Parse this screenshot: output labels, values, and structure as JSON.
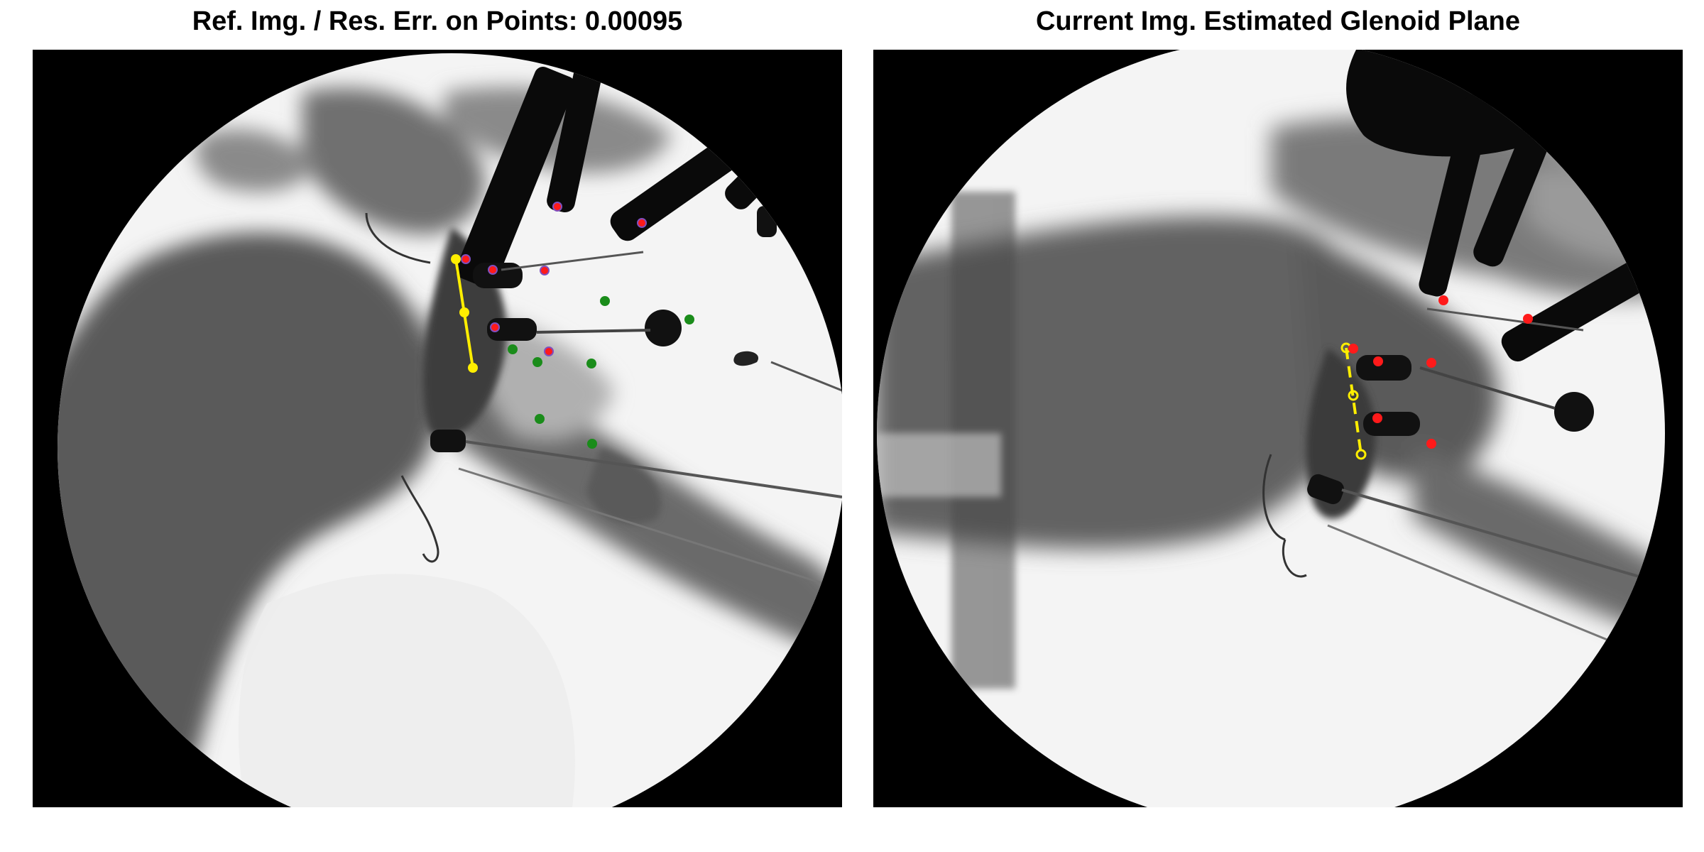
{
  "figure": {
    "left_panel": {
      "title": "Ref. Img. / Res. Err. on Points: 0.00095",
      "image_description_icon": "xray-shoulder-reference",
      "line_style": "solid"
    },
    "right_panel": {
      "title": "Current Img. Estimated Glenoid Plane",
      "image_description_icon": "xray-shoulder-current",
      "line_style": "dashed"
    }
  },
  "colors": {
    "glenoid_line": "#ffee00",
    "marker_red": "#ff1a1a",
    "marker_green": "#1a8c1a",
    "marker_ring": "#7f4fbf",
    "background": "#000000",
    "field": "#f4f4f4"
  }
}
